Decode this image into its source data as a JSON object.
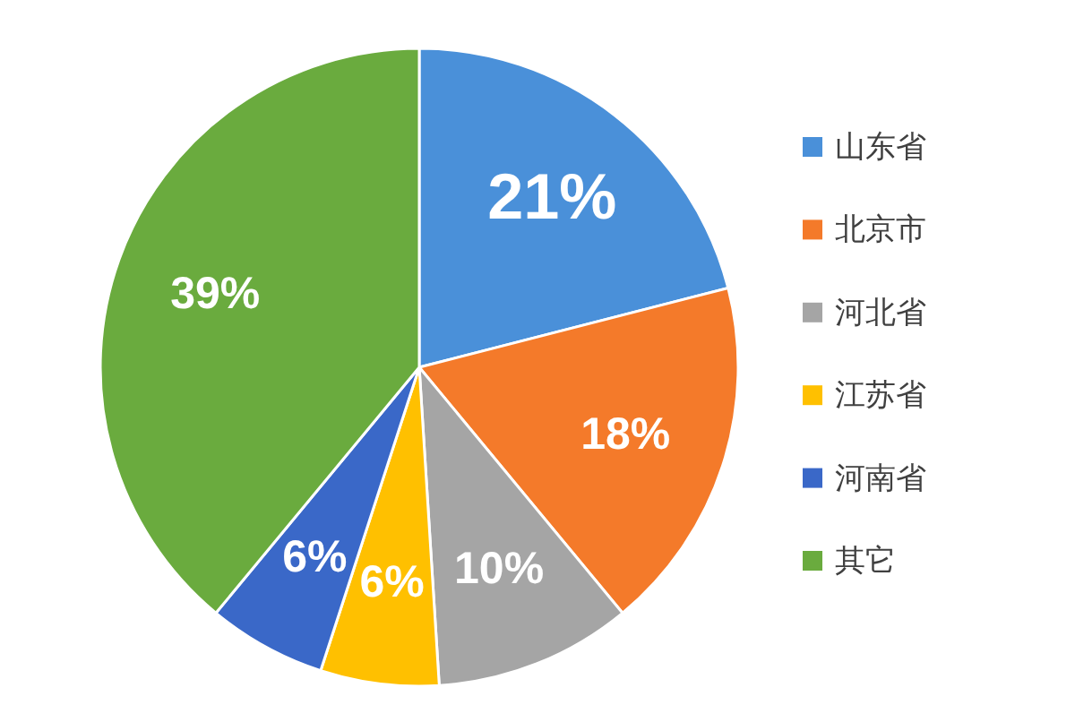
{
  "chart_data": {
    "type": "pie",
    "categories": [
      "山东省",
      "北京市",
      "河北省",
      "江苏省",
      "河南省",
      "其它"
    ],
    "values": [
      21,
      18,
      10,
      6,
      6,
      39
    ],
    "colors": [
      "#4a90d9",
      "#f47a2a",
      "#a5a5a5",
      "#ffc000",
      "#3a68c8",
      "#6aab3e"
    ],
    "value_labels": [
      "21%",
      "18%",
      "10%",
      "6%",
      "6%",
      "39%"
    ],
    "legend": "right"
  }
}
